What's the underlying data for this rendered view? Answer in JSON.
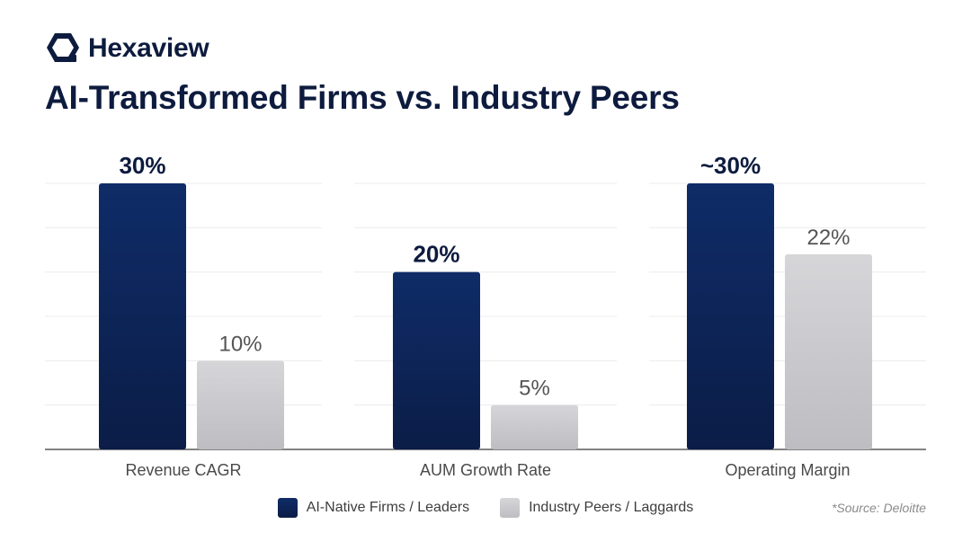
{
  "brand": {
    "name": "Hexaview",
    "logo_icon": "hexagon-logo-icon"
  },
  "title": "AI-Transformed Firms vs. Industry Peers",
  "source_note": "*Source: Deloitte",
  "colors": {
    "leaders": "#0f2c68",
    "leaders_dark": "#0b1d47",
    "peers": "#d6d6d9",
    "peers_dark": "#bdbdc2",
    "gridline": "#ececec",
    "baseline": "#5a5a5a",
    "label_dark": "#0d1b3e",
    "label_gray": "#555555"
  },
  "chart_data": {
    "type": "bar",
    "categories": [
      "Revenue CAGR",
      "AUM Growth Rate",
      "Operating Margin"
    ],
    "series": [
      {
        "name": "AI-Native Firms / Leaders",
        "values": [
          30,
          20,
          30
        ],
        "labels": [
          "30%",
          "20%",
          "~30%"
        ]
      },
      {
        "name": "Industry Peers / Laggards",
        "values": [
          10,
          5,
          22
        ],
        "labels": [
          "10%",
          "5%",
          "22%"
        ]
      }
    ],
    "ylim": [
      0,
      30
    ],
    "grid": true,
    "legend_position": "bottom-center"
  }
}
